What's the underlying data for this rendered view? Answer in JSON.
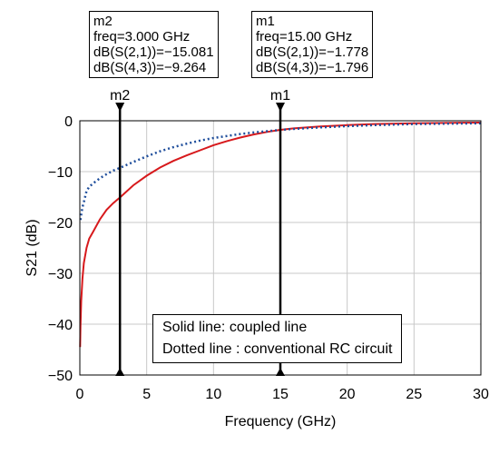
{
  "chart_data": {
    "type": "line",
    "xlabel": "Frequency (GHz)",
    "ylabel": "S21 (dB)",
    "xlim": [
      0,
      30
    ],
    "ylim": [
      -50,
      0
    ],
    "xticks": [
      0,
      5,
      10,
      15,
      20,
      25,
      30
    ],
    "yticks": [
      0,
      -10,
      -20,
      -30,
      -40,
      -50
    ],
    "grid": true,
    "series": [
      {
        "style": "solid",
        "color": "#d7191c",
        "x": [
          0.02,
          0.05,
          0.1,
          0.2,
          0.3,
          0.5,
          0.7,
          1.0,
          1.5,
          2.0,
          2.5,
          3.0,
          4.0,
          5.0,
          6.0,
          7.0,
          8.0,
          9.0,
          10.0,
          11.0,
          12.0,
          13.0,
          14.0,
          15.0,
          16.0,
          18.0,
          20.0,
          22.0,
          25.0,
          28.0,
          30.0
        ],
        "y": [
          -44.5,
          -40.5,
          -35.5,
          -31.0,
          -28.0,
          -25.0,
          -23.2,
          -21.8,
          -19.4,
          -17.5,
          -16.2,
          -15.081,
          -12.7,
          -10.8,
          -9.2,
          -7.9,
          -6.8,
          -5.8,
          -4.8,
          -4.0,
          -3.3,
          -2.7,
          -2.2,
          -1.778,
          -1.5,
          -1.1,
          -0.85,
          -0.65,
          -0.5,
          -0.4,
          -0.35
        ]
      },
      {
        "style": "dotted",
        "color": "#1f4e9c",
        "x": [
          0.05,
          0.1,
          0.2,
          0.3,
          0.5,
          0.7,
          1.0,
          1.5,
          2.0,
          2.5,
          3.0,
          4.0,
          5.0,
          6.0,
          7.0,
          8.0,
          9.0,
          10.0,
          11.0,
          12.0,
          13.0,
          14.0,
          15.0,
          16.0,
          18.0,
          20.0,
          22.0,
          25.0,
          28.0,
          30.0
        ],
        "y": [
          -19.5,
          -18.5,
          -17.0,
          -16.0,
          -13.8,
          -13.0,
          -12.3,
          -11.3,
          -10.5,
          -9.8,
          -9.264,
          -8.1,
          -7.0,
          -6.0,
          -5.2,
          -4.5,
          -3.9,
          -3.4,
          -3.0,
          -2.6,
          -2.3,
          -2.05,
          -1.796,
          -1.6,
          -1.3,
          -1.05,
          -0.85,
          -0.65,
          -0.55,
          -0.5
        ]
      }
    ],
    "markers": [
      {
        "name": "m2",
        "x": 3.0,
        "lines": [
          "m2",
          "freq=3.000 GHz",
          "dB(S(2,1))=−15.081",
          "dB(S(4,3))=−9.264"
        ]
      },
      {
        "name": "m1",
        "x": 15.0,
        "lines": [
          "m1",
          "freq=15.00 GHz",
          "dB(S(2,1))=−1.778",
          "dB(S(4,3))=−1.796"
        ]
      }
    ],
    "annotations": [
      "Solid line: coupled line",
      "Dotted line : conventional RC circuit"
    ],
    "legend_position": "bottom-right"
  }
}
